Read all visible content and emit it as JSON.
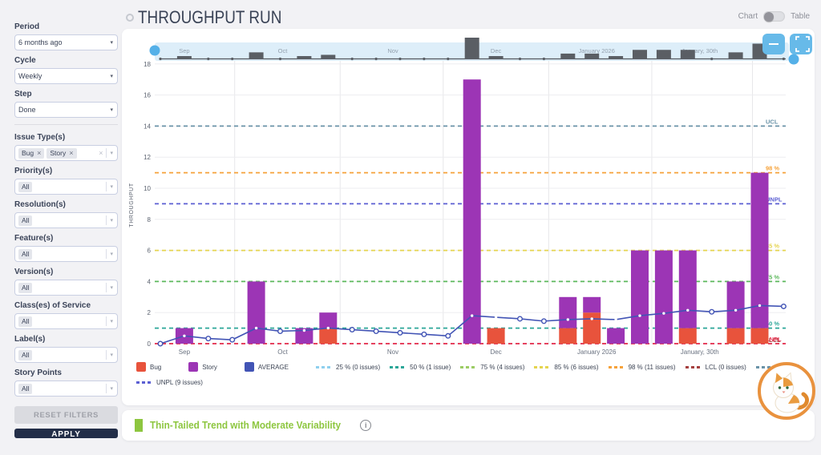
{
  "header": {
    "title": "THROUGHPUT RUN",
    "view_toggle": {
      "left_label": "Chart",
      "right_label": "Table",
      "selected": "Chart"
    }
  },
  "sidebar": {
    "filters": [
      {
        "label": "Period",
        "type": "select",
        "value": "6 months ago"
      },
      {
        "label": "Cycle",
        "type": "select",
        "value": "Weekly"
      },
      {
        "label": "Step",
        "type": "select",
        "value": "Done"
      },
      {
        "label": "Issue Type(s)",
        "type": "multi",
        "tags": [
          "Bug",
          "Story"
        ],
        "clearable": true,
        "divider_before": true
      },
      {
        "label": "Priority(s)",
        "type": "multi",
        "tags": [
          "All"
        ]
      },
      {
        "label": "Resolution(s)",
        "type": "multi",
        "tags": [
          "All"
        ]
      },
      {
        "label": "Feature(s)",
        "type": "multi",
        "tags": [
          "All"
        ]
      },
      {
        "label": "Version(s)",
        "type": "multi",
        "tags": [
          "All"
        ]
      },
      {
        "label": "Class(es) of Service",
        "type": "multi",
        "tags": [
          "All"
        ]
      },
      {
        "label": "Label(s)",
        "type": "multi",
        "tags": [
          "All"
        ]
      },
      {
        "label": "Story Points",
        "type": "multi",
        "tags": [
          "All"
        ]
      }
    ],
    "reset_label": "RESET FILTERS",
    "apply_label": "APPLY"
  },
  "status": {
    "label": "Thin-Tailed Trend with Moderate Variability",
    "color": "#8dc63f"
  },
  "chart_data": {
    "type": "bar",
    "stacked": true,
    "title": "THROUGHPUT RUN",
    "ylabel": "THROUGHPUT",
    "ylim": [
      0,
      18
    ],
    "yticks": [
      0,
      2,
      4,
      6,
      8,
      10,
      12,
      14,
      16,
      18
    ],
    "cycle": "Weekly",
    "months": [
      {
        "label": "Sep",
        "center_week": 1.0
      },
      {
        "label": "Oct",
        "center_week": 5.1
      },
      {
        "label": "Nov",
        "center_week": 9.7
      },
      {
        "label": "Dec",
        "center_week": 14.0
      },
      {
        "label": "January 2026",
        "center_week": 18.2
      },
      {
        "label": "January, 30th",
        "center_week": 22.5
      }
    ],
    "month_boundaries": [
      3.1,
      7.5,
      11.8,
      16.2,
      20.5,
      24.7
    ],
    "series": [
      {
        "name": "Bug",
        "color": "#e8533c"
      },
      {
        "name": "Story",
        "color": "#9c35b5"
      }
    ],
    "average_color": "#4254b5",
    "weeks": [
      {
        "bug": 0,
        "story": 0,
        "avg": 0
      },
      {
        "bug": 0,
        "story": 1,
        "avg": 0.5
      },
      {
        "bug": 0,
        "story": 0,
        "avg": 0.33
      },
      {
        "bug": 0,
        "story": 0,
        "avg": 0.25
      },
      {
        "bug": 0,
        "story": 4,
        "avg": 1.0
      },
      {
        "bug": 0,
        "story": 0,
        "avg": 0.8
      },
      {
        "bug": 0,
        "story": 1,
        "avg": 0.85
      },
      {
        "bug": 1,
        "story": 1,
        "avg": 1.0
      },
      {
        "bug": 0,
        "story": 0,
        "avg": 0.9
      },
      {
        "bug": 0,
        "story": 0,
        "avg": 0.8
      },
      {
        "bug": 0,
        "story": 0,
        "avg": 0.7
      },
      {
        "bug": 0,
        "story": 0,
        "avg": 0.6
      },
      {
        "bug": 0,
        "story": 0,
        "avg": 0.5
      },
      {
        "bug": 0,
        "story": 17,
        "avg": 1.8
      },
      {
        "bug": 1,
        "story": 0,
        "avg": 1.7
      },
      {
        "bug": 0,
        "story": 0,
        "avg": 1.6
      },
      {
        "bug": 0,
        "story": 0,
        "avg": 1.45
      },
      {
        "bug": 1,
        "story": 2,
        "avg": 1.55
      },
      {
        "bug": 2,
        "story": 1,
        "avg": 1.6
      },
      {
        "bug": 0,
        "story": 1,
        "avg": 1.55
      },
      {
        "bug": 0,
        "story": 6,
        "avg": 1.8
      },
      {
        "bug": 0,
        "story": 6,
        "avg": 1.95
      },
      {
        "bug": 1,
        "story": 5,
        "avg": 2.15
      },
      {
        "bug": 0,
        "story": 0,
        "avg": 2.05
      },
      {
        "bug": 1,
        "story": 3,
        "avg": 2.15
      },
      {
        "bug": 1,
        "story": 10,
        "avg": 2.45
      },
      {
        "bug": 0,
        "story": 0,
        "avg": 2.4
      }
    ],
    "reference_lines": [
      {
        "name": "UCL",
        "value": 14,
        "color": "#6a93a8"
      },
      {
        "name": "98 %",
        "value": 11,
        "color": "#f6a23a"
      },
      {
        "name": "UNPL",
        "value": 9,
        "color": "#5b5fd3"
      },
      {
        "name": "85 %",
        "value": 6,
        "color": "#e5d44f"
      },
      {
        "name": "75 %",
        "value": 4,
        "color": "#5cb85c"
      },
      {
        "name": "50 %",
        "value": 1,
        "color": "#2ba698"
      },
      {
        "name": "25 %",
        "value": 0,
        "color": "#8fd0ee",
        "hide_label": true
      },
      {
        "name": "LCL",
        "value": 0,
        "color": "#a5403f"
      },
      {
        "name": "LNPL",
        "value": 0,
        "color": "#ef3e5e"
      }
    ],
    "legend": [
      {
        "label": "Bug",
        "swatch": "square",
        "color": "#e8533c"
      },
      {
        "label": "Story",
        "swatch": "square",
        "color": "#9c35b5"
      },
      {
        "label": "AVERAGE",
        "swatch": "square",
        "color": "#4254b5"
      },
      {
        "label": "25 % (0 issues)",
        "swatch": "dash",
        "color": "#8fd0ee"
      },
      {
        "label": "50 % (1 issue)",
        "swatch": "dash",
        "color": "#2ba698"
      },
      {
        "label": "75 % (4 issues)",
        "swatch": "dash",
        "color": "#9ccc65"
      },
      {
        "label": "85 % (6 issues)",
        "swatch": "dash",
        "color": "#e5d44f"
      },
      {
        "label": "98 % (11 issues)",
        "swatch": "dash",
        "color": "#f6a23a"
      },
      {
        "label": "LCL (0 issues)",
        "swatch": "dash",
        "color": "#a5403f"
      },
      {
        "label": "UCL (14 issues)",
        "swatch": "dash",
        "color": "#6a93a8"
      },
      {
        "label": "LNPL (0 issues)",
        "swatch": "dash",
        "color": "#ef3e5e"
      },
      {
        "label": "UNPL (9 issues)",
        "swatch": "dash",
        "color": "#5b5fd3"
      }
    ]
  }
}
